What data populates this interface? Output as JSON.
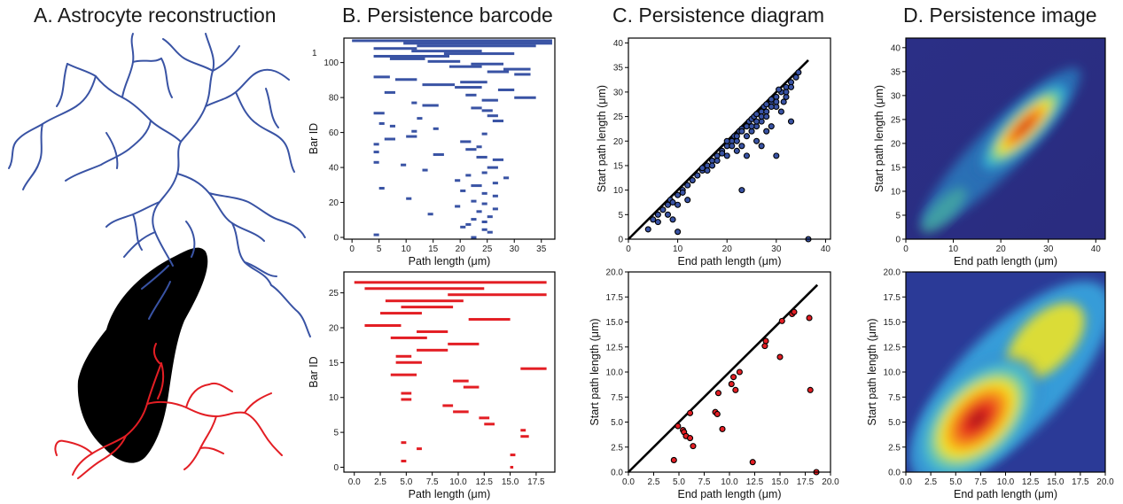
{
  "titles": {
    "a": "A. Astrocyte reconstruction",
    "b": "B. Persistence barcode",
    "c": "C. Persistence diagram",
    "d": "D. Persistence image"
  },
  "colors": {
    "blue": "#3953a4",
    "red": "#e31e24",
    "black": "#000000"
  },
  "chart_data": [
    {
      "id": "barcode-blue",
      "type": "bar",
      "xlabel": "Path length (μm)",
      "ylabel": "Bar ID",
      "xlim": [
        -1.5,
        37.5
      ],
      "ylim": [
        -1,
        114
      ],
      "xticks": [
        0,
        5,
        10,
        15,
        20,
        25,
        30,
        35
      ],
      "yticks": [
        0,
        20,
        40,
        60,
        80,
        100
      ],
      "extra_label": "1",
      "bars": [
        [
          0,
          37
        ],
        [
          9.5,
          37
        ],
        [
          12,
          34
        ],
        [
          4,
          12
        ],
        [
          11,
          24
        ],
        [
          17,
          30
        ],
        [
          4,
          18
        ],
        [
          7,
          13.5
        ],
        [
          14,
          20
        ],
        [
          22,
          28
        ],
        [
          18,
          24
        ],
        [
          28,
          33
        ],
        [
          25,
          29
        ],
        [
          30,
          33
        ],
        [
          4,
          7
        ],
        [
          8,
          12
        ],
        [
          20,
          25
        ],
        [
          13,
          19
        ],
        [
          19,
          24
        ],
        [
          27,
          30
        ],
        [
          6,
          8
        ],
        [
          21,
          23
        ],
        [
          30,
          34
        ],
        [
          24,
          27
        ],
        [
          11,
          12
        ],
        [
          13,
          16
        ],
        [
          22,
          24
        ],
        [
          24,
          26
        ],
        [
          4,
          6
        ],
        [
          25,
          27
        ],
        [
          12,
          13
        ],
        [
          26,
          28
        ],
        [
          5,
          6
        ],
        [
          7,
          8
        ],
        [
          15,
          16
        ],
        [
          11,
          12
        ],
        [
          24,
          25
        ],
        [
          10,
          12
        ],
        [
          6,
          8
        ],
        [
          20,
          22
        ],
        [
          4,
          5
        ],
        [
          23,
          24
        ],
        [
          21,
          23
        ],
        [
          4,
          5
        ],
        [
          15,
          17
        ],
        [
          23,
          25
        ],
        [
          26,
          28
        ],
        [
          4,
          5
        ],
        [
          9,
          10
        ],
        [
          25,
          27
        ],
        [
          13,
          14
        ],
        [
          24,
          25
        ],
        [
          21,
          22
        ],
        [
          28,
          29
        ],
        [
          19,
          20
        ],
        [
          26,
          27
        ],
        [
          22,
          24
        ],
        [
          5,
          6
        ],
        [
          20,
          21
        ],
        [
          24,
          25
        ],
        [
          26,
          27
        ],
        [
          10,
          11
        ],
        [
          22,
          23
        ],
        [
          24,
          25
        ],
        [
          19,
          20
        ],
        [
          26,
          27
        ],
        [
          23,
          24
        ],
        [
          14,
          15
        ],
        [
          25,
          26
        ],
        [
          22,
          23
        ],
        [
          24,
          25
        ],
        [
          21,
          22
        ],
        [
          20,
          21
        ],
        [
          24,
          25
        ],
        [
          25,
          26
        ],
        [
          4,
          5
        ],
        [
          22,
          23
        ]
      ]
    },
    {
      "id": "barcode-red",
      "type": "bar",
      "xlabel": "Path length (μm)",
      "ylabel": "Bar ID",
      "xlim": [
        -1,
        19.3
      ],
      "ylim": [
        -0.7,
        28
      ],
      "xticks": [
        0,
        2.5,
        5,
        7.5,
        10,
        12.5,
        15,
        17.5
      ],
      "xtick_labels": [
        "0.0",
        "2.5",
        "5.0",
        "7.5",
        "10.0",
        "12.5",
        "15.0",
        "17.5"
      ],
      "yticks": [
        0,
        5,
        10,
        15,
        20,
        25
      ],
      "bars": [
        [
          0,
          18.5
        ],
        [
          1,
          12.5
        ],
        [
          9,
          18.5
        ],
        [
          3,
          10.5
        ],
        [
          4.5,
          9.5
        ],
        [
          2.5,
          6.5
        ],
        [
          11,
          15
        ],
        [
          1,
          4.5
        ],
        [
          6,
          9
        ],
        [
          3.5,
          7
        ],
        [
          9,
          12
        ],
        [
          6,
          9
        ],
        [
          4,
          5.5
        ],
        [
          4,
          6.5
        ],
        [
          16,
          18.5
        ],
        [
          3.5,
          6
        ],
        [
          9.5,
          11
        ],
        [
          10.5,
          12
        ],
        [
          4.5,
          5.5
        ],
        [
          4.5,
          5.5
        ],
        [
          8.5,
          9.5
        ],
        [
          9.5,
          11
        ],
        [
          12,
          13
        ],
        [
          12.5,
          13.5
        ],
        [
          16,
          16.5
        ],
        [
          16,
          16.8
        ],
        [
          4.5,
          5
        ],
        [
          6,
          6.5
        ],
        [
          15,
          15.5
        ],
        [
          4.5,
          5
        ],
        [
          15,
          15.3
        ]
      ]
    },
    {
      "id": "diagram-blue",
      "type": "scatter",
      "xlabel": "End path length (μm)",
      "ylabel": "Start path length (μm)",
      "xlim": [
        0,
        41
      ],
      "ylim": [
        0,
        41
      ],
      "xticks": [
        0,
        10,
        20,
        30,
        40
      ],
      "yticks": [
        0,
        5,
        10,
        15,
        20,
        25,
        30,
        35,
        40
      ],
      "diagonal": [
        [
          0,
          0
        ],
        [
          36.5,
          36.5
        ]
      ],
      "points": [
        [
          4,
          2
        ],
        [
          5,
          4
        ],
        [
          6,
          5
        ],
        [
          7,
          6
        ],
        [
          8,
          7
        ],
        [
          8.5,
          8
        ],
        [
          9,
          7.5
        ],
        [
          10,
          9
        ],
        [
          11,
          10
        ],
        [
          12,
          11
        ],
        [
          13,
          12
        ],
        [
          14,
          13
        ],
        [
          15,
          14
        ],
        [
          16,
          15
        ],
        [
          17,
          16
        ],
        [
          18,
          17
        ],
        [
          19,
          18
        ],
        [
          20,
          19
        ],
        [
          21,
          20
        ],
        [
          21.5,
          21
        ],
        [
          22,
          20
        ],
        [
          22.5,
          22
        ],
        [
          23,
          22.5
        ],
        [
          24,
          23
        ],
        [
          24.5,
          24
        ],
        [
          25,
          24.5
        ],
        [
          25.5,
          25
        ],
        [
          26,
          25.5
        ],
        [
          27,
          26
        ],
        [
          27.5,
          27
        ],
        [
          28,
          27.5
        ],
        [
          29,
          28
        ],
        [
          30,
          29
        ],
        [
          31,
          30
        ],
        [
          32,
          31
        ],
        [
          33,
          32
        ],
        [
          34,
          33
        ],
        [
          34.5,
          34
        ],
        [
          30.5,
          30.5
        ],
        [
          31.5,
          28
        ],
        [
          33,
          31
        ],
        [
          32,
          29
        ],
        [
          30,
          27
        ],
        [
          29,
          28.5
        ],
        [
          28,
          26
        ],
        [
          27,
          24
        ],
        [
          26,
          23
        ],
        [
          25,
          22
        ],
        [
          24,
          21
        ],
        [
          23,
          19
        ],
        [
          22,
          18
        ],
        [
          20,
          17
        ],
        [
          21,
          19
        ],
        [
          24,
          17
        ],
        [
          26,
          20
        ],
        [
          27,
          19
        ],
        [
          28,
          22
        ],
        [
          29,
          23
        ],
        [
          31,
          26
        ],
        [
          33,
          24
        ],
        [
          30,
          17
        ],
        [
          23,
          10
        ],
        [
          10,
          1.5
        ],
        [
          11,
          9.5
        ],
        [
          12,
          8
        ],
        [
          10,
          7
        ],
        [
          8,
          5
        ],
        [
          6,
          3.5
        ],
        [
          9,
          4
        ],
        [
          15,
          14.5
        ],
        [
          16,
          14
        ],
        [
          17,
          15
        ],
        [
          18,
          16
        ],
        [
          19,
          17.5
        ],
        [
          20,
          20
        ],
        [
          22,
          21
        ],
        [
          23,
          22
        ],
        [
          25,
          23
        ],
        [
          26,
          24
        ],
        [
          27,
          25
        ],
        [
          29,
          27
        ],
        [
          30,
          28
        ],
        [
          28,
          25
        ],
        [
          32,
          30
        ],
        [
          36.5,
          0
        ]
      ]
    },
    {
      "id": "diagram-red",
      "type": "scatter",
      "xlabel": "End path length (μm)",
      "ylabel": "Start path length (μm)",
      "xlim": [
        0,
        20
      ],
      "ylim": [
        0,
        20
      ],
      "xticks": [
        0,
        2.5,
        5,
        7.5,
        10,
        12.5,
        15,
        17.5,
        20
      ],
      "xtick_labels": [
        "0.0",
        "2.5",
        "5.0",
        "7.5",
        "10.0",
        "12.5",
        "15.0",
        "17.5",
        "20.0"
      ],
      "yticks": [
        0,
        2.5,
        5,
        7.5,
        10,
        12.5,
        15,
        17.5,
        20
      ],
      "ytick_labels": [
        "0.0",
        "2.5",
        "5.0",
        "7.5",
        "10.0",
        "12.5",
        "15.0",
        "17.5",
        "20.0"
      ],
      "diagonal": [
        [
          0,
          0
        ],
        [
          18.7,
          18.7
        ]
      ],
      "points": [
        [
          4.5,
          1.2
        ],
        [
          4.9,
          4.6
        ],
        [
          5.4,
          4.2
        ],
        [
          5.5,
          4.0
        ],
        [
          5.7,
          3.6
        ],
        [
          6.1,
          3.4
        ],
        [
          6.1,
          5.9
        ],
        [
          6.4,
          2.6
        ],
        [
          8.6,
          6.0
        ],
        [
          8.8,
          5.8
        ],
        [
          8.9,
          7.9
        ],
        [
          9.3,
          4.3
        ],
        [
          10.2,
          8.8
        ],
        [
          10.4,
          9.5
        ],
        [
          10.6,
          8.2
        ],
        [
          11.0,
          10.0
        ],
        [
          12.3,
          1.0
        ],
        [
          13.5,
          12.6
        ],
        [
          13.6,
          13.1
        ],
        [
          15.0,
          11.5
        ],
        [
          15.2,
          15.1
        ],
        [
          16.2,
          15.8
        ],
        [
          16.4,
          16.0
        ],
        [
          17.9,
          15.4
        ],
        [
          18.0,
          8.2
        ],
        [
          18.6,
          0
        ]
      ]
    },
    {
      "id": "image-blue",
      "type": "heatmap",
      "xlabel": "End path length (μm)",
      "ylabel": "Start path length (μm)",
      "xlim": [
        0,
        42
      ],
      "ylim": [
        0,
        42
      ],
      "xticks": [
        0,
        10,
        20,
        30,
        40
      ],
      "yticks": [
        0,
        5,
        10,
        15,
        20,
        25,
        30,
        35,
        40
      ]
    },
    {
      "id": "image-red",
      "type": "heatmap",
      "xlabel": "End path length (μm)",
      "ylabel": "Start path length (μm)",
      "xlim": [
        0,
        20
      ],
      "ylim": [
        0,
        20
      ],
      "xticks": [
        0,
        2.5,
        5,
        7.5,
        10,
        12.5,
        15,
        17.5,
        20
      ],
      "xtick_labels": [
        "0.0",
        "2.5",
        "5.0",
        "7.5",
        "10.0",
        "12.5",
        "15.0",
        "17.5",
        "20.0"
      ],
      "yticks": [
        0,
        2.5,
        5,
        7.5,
        10,
        12.5,
        15,
        17.5,
        20
      ],
      "ytick_labels": [
        "0.0",
        "2.5",
        "5.0",
        "7.5",
        "10.0",
        "12.5",
        "15.0",
        "17.5",
        "20.0"
      ]
    }
  ]
}
